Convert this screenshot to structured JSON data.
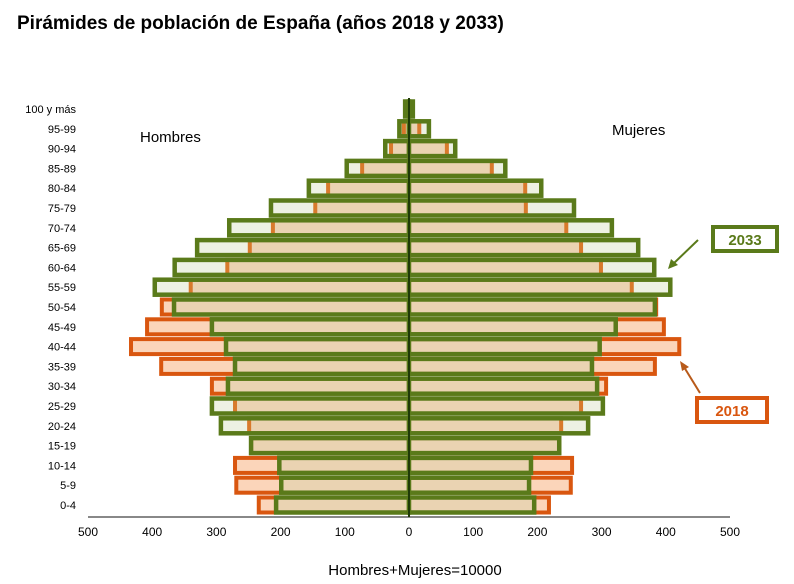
{
  "chart_data": {
    "type": "bar",
    "orientation": "horizontal-pyramid",
    "title": "Pirámides de población de España (años 2018 y 2033)",
    "xlabel": "Hombres+Mujeres=10000",
    "side_labels": {
      "left": "Hombres",
      "right": "Mujeres"
    },
    "xlim": [
      -500,
      500
    ],
    "x_ticks": [
      "500",
      "400",
      "300",
      "200",
      "100",
      "0",
      "100",
      "200",
      "300",
      "400",
      "500"
    ],
    "categories": [
      "0-4",
      "5-9",
      "10-14",
      "15-19",
      "20-24",
      "25-29",
      "30-34",
      "35-39",
      "40-44",
      "45-49",
      "50-54",
      "55-59",
      "60-64",
      "65-69",
      "70-74",
      "75-79",
      "80-84",
      "85-89",
      "90-94",
      "95-99",
      "100 y más"
    ],
    "series": [
      {
        "name": "2018",
        "color": "#d9560f",
        "hombres": [
          234,
          269,
          271,
          246,
          249,
          271,
          307,
          386,
          433,
          408,
          385,
          340,
          283,
          248,
          212,
          146,
          126,
          73,
          28,
          8,
          3
        ],
        "mujeres": [
          218,
          252,
          254,
          234,
          237,
          268,
          307,
          383,
          421,
          397,
          385,
          347,
          299,
          268,
          245,
          182,
          181,
          129,
          59,
          16,
          4
        ]
      },
      {
        "name": "2033",
        "color": "#5a7a1a",
        "hombres": [
          207,
          199,
          202,
          246,
          293,
          307,
          282,
          271,
          285,
          307,
          366,
          396,
          365,
          330,
          280,
          215,
          156,
          97,
          37,
          15,
          6
        ],
        "mujeres": [
          195,
          187,
          190,
          234,
          279,
          302,
          293,
          285,
          297,
          322,
          383,
          407,
          382,
          357,
          316,
          257,
          206,
          150,
          72,
          31,
          6
        ]
      }
    ],
    "legend": [
      {
        "label": "2033",
        "placement": "right-upper"
      },
      {
        "label": "2018",
        "placement": "right-lower"
      }
    ]
  }
}
